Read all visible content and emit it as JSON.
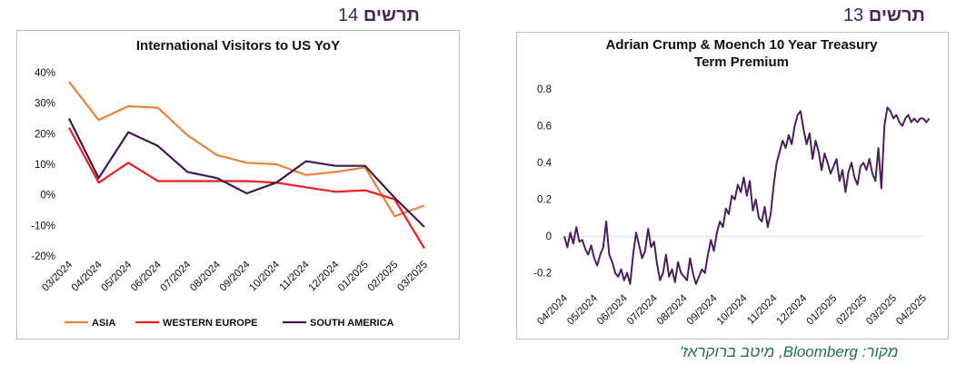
{
  "headers": {
    "left": {
      "word": "תרשים",
      "number": "14"
    },
    "right": {
      "word": "תרשים",
      "number": "13"
    }
  },
  "source_text": "מקור: Bloomberg, מיטב ברוקראז'",
  "colors": {
    "asia": "#e8813a",
    "western_europe": "#ee1c1c",
    "south_america": "#3d1a4f",
    "term_premium": "#4b1f5c"
  },
  "chart_data": [
    {
      "type": "line",
      "title": "International Visitors to US YoY",
      "xlabel": "",
      "ylabel": "",
      "categories": [
        "03/2024",
        "04/2024",
        "05/2024",
        "06/2024",
        "07/2024",
        "08/2024",
        "09/2024",
        "10/2024",
        "11/2024",
        "12/2024",
        "01/2025",
        "02/2025",
        "03/2025"
      ],
      "y_ticks": [
        "40%",
        "30%",
        "20%",
        "10%",
        "0%",
        "-10%",
        "-20%"
      ],
      "ylim": [
        -20,
        40
      ],
      "grid": false,
      "legend_position": "bottom",
      "series": [
        {
          "name": "ASIA",
          "values": [
            37,
            24.5,
            29,
            28.5,
            19.5,
            13,
            10.5,
            10,
            6.5,
            7.5,
            9,
            -7,
            -3.5
          ]
        },
        {
          "name": "WESTERN EUROPE",
          "values": [
            22,
            4,
            10.5,
            4.5,
            4.5,
            4.5,
            4.5,
            4,
            2.5,
            1,
            1.5,
            -1.5,
            -17.5
          ]
        },
        {
          "name": "SOUTH AMERICA",
          "values": [
            25,
            5.5,
            20.5,
            16,
            7.5,
            5.5,
            0.5,
            4,
            11,
            9.5,
            9.5,
            -1,
            -10.5
          ]
        }
      ]
    },
    {
      "type": "line",
      "title": "Adrian Crump & Moench 10 Year Treasury Term Premium",
      "xlabel": "",
      "ylabel": "",
      "categories": [
        "04/2024",
        "05/2024",
        "06/2024",
        "07/2024",
        "08/2024",
        "09/2024",
        "10/2024",
        "11/2024",
        "12/2024",
        "01/2025",
        "02/2025",
        "03/2025",
        "04/2025"
      ],
      "y_ticks": [
        "0.8",
        "0.6",
        "0.4",
        "0.2",
        "0",
        "-0.2"
      ],
      "ylim": [
        -0.3,
        0.85
      ],
      "grid": false,
      "series": [
        {
          "x": [
            0,
            0.1,
            0.2,
            0.3,
            0.4,
            0.5,
            0.6,
            0.7,
            0.8,
            0.9,
            1.0,
            1.1,
            1.2,
            1.3,
            1.4,
            1.5,
            1.6,
            1.7,
            1.8,
            1.9,
            2.0,
            2.1,
            2.2,
            2.3,
            2.4,
            2.5,
            2.6,
            2.7,
            2.8,
            2.9,
            3.0,
            3.1,
            3.2,
            3.3,
            3.4,
            3.5,
            3.6,
            3.7,
            3.8,
            3.9,
            4.0,
            4.1,
            4.2,
            4.3,
            4.4,
            4.5,
            4.6,
            4.7,
            4.8,
            4.9,
            5.0,
            5.1,
            5.2,
            5.3,
            5.4,
            5.5,
            5.6,
            5.7,
            5.8,
            5.9,
            6.0,
            6.1,
            6.2,
            6.3,
            6.4,
            6.5,
            6.6,
            6.7,
            6.8,
            6.9,
            7.0,
            7.1,
            7.2,
            7.3,
            7.4,
            7.5,
            7.6,
            7.7,
            7.8,
            7.9,
            8.0,
            8.1,
            8.2,
            8.3,
            8.4,
            8.5,
            8.6,
            8.7,
            8.8,
            8.9,
            9.0,
            9.1,
            9.2,
            9.3,
            9.4,
            9.5,
            9.6,
            9.7,
            9.8,
            9.9,
            10.0,
            10.1,
            10.2,
            10.3,
            10.4,
            10.5,
            10.6,
            10.7,
            10.8,
            10.9,
            11.0,
            11.1,
            11.2,
            11.3,
            11.4,
            11.5,
            11.6,
            11.7,
            11.8,
            11.9,
            12.0,
            12.1,
            12.2
          ],
          "values": [
            0,
            -0.06,
            0.02,
            -0.04,
            0.05,
            -0.03,
            -0.02,
            -0.07,
            -0.1,
            -0.05,
            -0.12,
            -0.16,
            -0.1,
            -0.06,
            0.08,
            -0.1,
            -0.14,
            -0.2,
            -0.22,
            -0.18,
            -0.24,
            -0.2,
            -0.26,
            -0.1,
            0.02,
            -0.05,
            -0.12,
            -0.08,
            0.04,
            -0.06,
            -0.03,
            -0.15,
            -0.24,
            -0.2,
            -0.1,
            -0.22,
            -0.18,
            -0.25,
            -0.14,
            -0.2,
            -0.22,
            -0.24,
            -0.12,
            -0.2,
            -0.26,
            -0.22,
            -0.18,
            -0.2,
            -0.1,
            -0.02,
            -0.08,
            0.02,
            0.08,
            0.05,
            0.15,
            0.12,
            0.22,
            0.2,
            0.28,
            0.24,
            0.32,
            0.22,
            0.3,
            0.14,
            0.2,
            0.1,
            0.08,
            0.16,
            0.05,
            0.12,
            0.28,
            0.4,
            0.46,
            0.52,
            0.48,
            0.55,
            0.5,
            0.6,
            0.66,
            0.68,
            0.58,
            0.5,
            0.56,
            0.42,
            0.52,
            0.46,
            0.36,
            0.45,
            0.4,
            0.34,
            0.38,
            0.42,
            0.3,
            0.36,
            0.24,
            0.35,
            0.4,
            0.32,
            0.28,
            0.38,
            0.4,
            0.36,
            0.42,
            0.34,
            0.3,
            0.48,
            0.26,
            0.6,
            0.7,
            0.68,
            0.64,
            0.66,
            0.62,
            0.6,
            0.64,
            0.66,
            0.62,
            0.64,
            0.62,
            0.64,
            0.64,
            0.62,
            0.64
          ]
        }
      ]
    }
  ]
}
